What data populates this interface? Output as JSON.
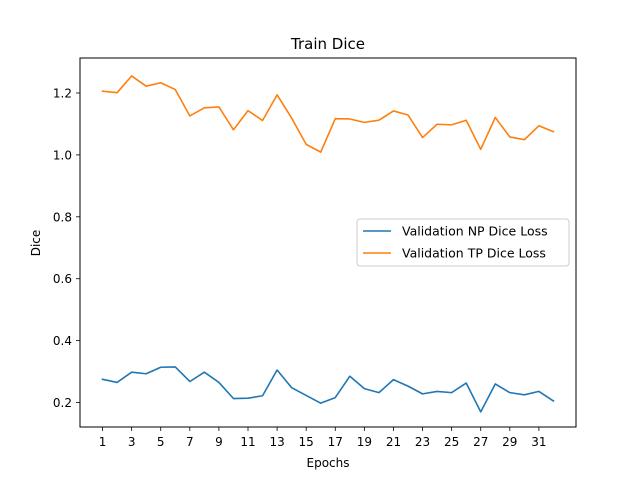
{
  "chart_data": {
    "type": "line",
    "title": "Train Dice",
    "xlabel": "Epochs",
    "ylabel": "Dice",
    "x": [
      1,
      2,
      3,
      4,
      5,
      6,
      7,
      8,
      9,
      10,
      11,
      12,
      13,
      14,
      15,
      16,
      17,
      18,
      19,
      20,
      21,
      22,
      23,
      24,
      25,
      26,
      27,
      28,
      29,
      30,
      31,
      32
    ],
    "xticks": [
      1,
      3,
      5,
      7,
      9,
      11,
      13,
      15,
      17,
      19,
      21,
      23,
      25,
      27,
      29,
      31
    ],
    "yticks": [
      0.2,
      0.4,
      0.6,
      0.8,
      1.0,
      1.2
    ],
    "ytick_labels": [
      "0.2",
      "0.4",
      "0.6",
      "0.8",
      "1.0",
      "1.2"
    ],
    "xlim": [
      -0.55,
      33.55
    ],
    "ylim": [
      0.121,
      1.313
    ],
    "grid": false,
    "legend_position": "center-right",
    "series": [
      {
        "name": "Validation NP Dice Loss",
        "color": "#1f77b4",
        "values": [
          0.275,
          0.265,
          0.298,
          0.293,
          0.314,
          0.315,
          0.268,
          0.298,
          0.265,
          0.213,
          0.214,
          0.222,
          0.305,
          0.248,
          0.223,
          0.198,
          0.216,
          0.285,
          0.245,
          0.232,
          0.274,
          0.253,
          0.228,
          0.236,
          0.232,
          0.263,
          0.17,
          0.26,
          0.232,
          0.225,
          0.236,
          0.205
        ]
      },
      {
        "name": "Validation TP Dice Loss",
        "color": "#ff7f0e",
        "values": [
          1.206,
          1.201,
          1.255,
          1.222,
          1.233,
          1.211,
          1.126,
          1.152,
          1.155,
          1.081,
          1.143,
          1.111,
          1.194,
          1.119,
          1.034,
          1.009,
          1.117,
          1.116,
          1.105,
          1.112,
          1.142,
          1.129,
          1.056,
          1.099,
          1.097,
          1.112,
          1.018,
          1.121,
          1.058,
          1.049,
          1.094,
          1.075
        ]
      }
    ]
  }
}
